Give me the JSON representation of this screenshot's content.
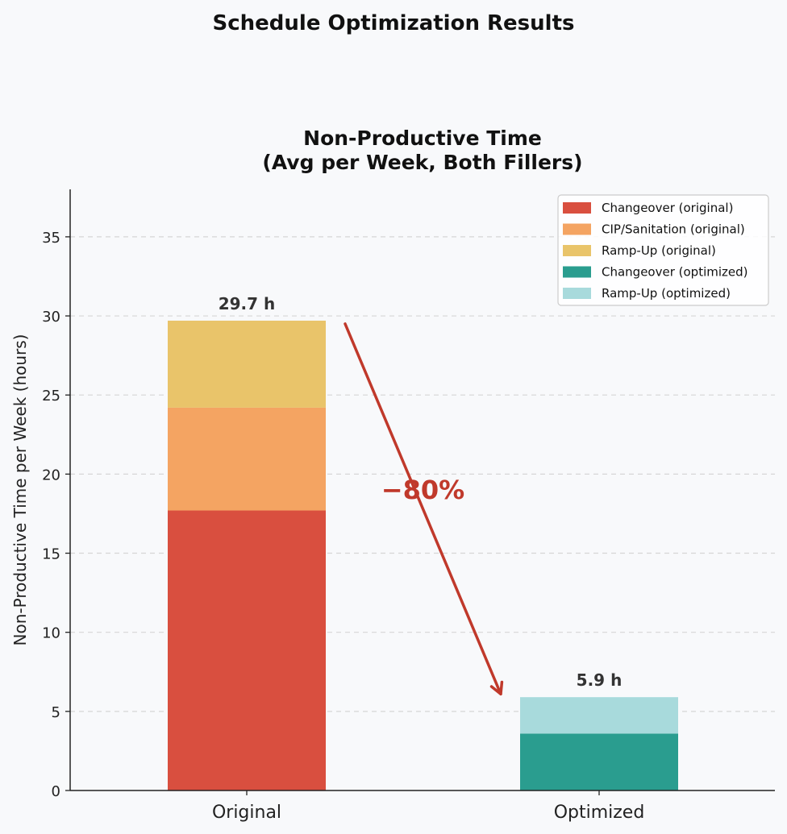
{
  "figure": {
    "suptitle": "Schedule Optimization Results",
    "background": "#f8f9fb"
  },
  "chart_data": {
    "type": "bar",
    "stacked": true,
    "title_line1": "Non-Productive Time",
    "title_line2": "(Avg per Week, Both Fillers)",
    "xlabel": "",
    "ylabel": "Non-Productive Time per Week (hours)",
    "categories": [
      "Original",
      "Optimized"
    ],
    "ylim": [
      0,
      38
    ],
    "yticks": [
      0,
      5,
      10,
      15,
      20,
      25,
      30,
      35
    ],
    "grid": "y-dashed",
    "legend_position": "top-right",
    "series": [
      {
        "name": "Changeover (original)",
        "color": "#d94f3f",
        "values": [
          17.7,
          0
        ]
      },
      {
        "name": "CIP/Sanitation (original)",
        "color": "#f4a462",
        "values": [
          6.5,
          0
        ]
      },
      {
        "name": "Ramp-Up (original)",
        "color": "#e9c46a",
        "values": [
          5.5,
          0
        ]
      },
      {
        "name": "Changeover (optimized)",
        "color": "#2a9d8f",
        "values": [
          0,
          3.6
        ]
      },
      {
        "name": "Ramp-Up (optimized)",
        "color": "#a8dadc",
        "values": [
          0,
          2.3
        ]
      }
    ],
    "totals": [
      29.7,
      5.9
    ],
    "total_labels": [
      "29.7 h",
      "5.9 h"
    ],
    "annotation": {
      "text": "−80%",
      "color": "#c0392b",
      "arrow_from": {
        "category": "Original",
        "value": 29.5
      },
      "arrow_to": {
        "category": "Optimized",
        "value": 6.1
      },
      "text_value": 19
    }
  }
}
